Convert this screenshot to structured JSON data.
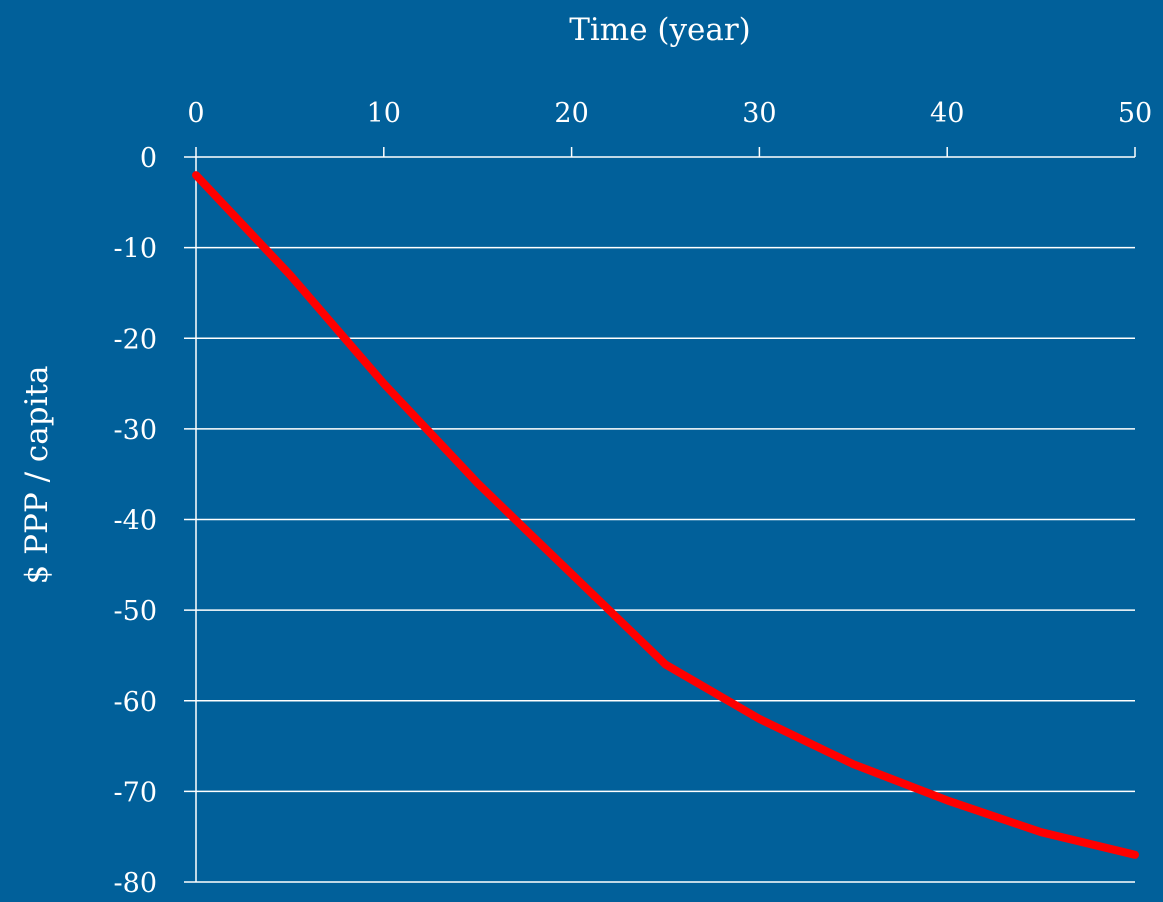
{
  "chart_data": {
    "type": "line",
    "title": "",
    "xlabel": "Time (year)",
    "ylabel": "$ PPP / capita",
    "xlim": [
      0,
      50
    ],
    "ylim": [
      -80,
      0
    ],
    "x_ticks": [
      0,
      10,
      20,
      30,
      40,
      50
    ],
    "y_ticks": [
      0,
      -10,
      -20,
      -30,
      -40,
      -50,
      -60,
      -70,
      -80
    ],
    "x_axis_position": "top",
    "grid": "horizontal",
    "legend": "none",
    "series": [
      {
        "name": "",
        "color": "#ff0000",
        "x": [
          0,
          5,
          10,
          15,
          17.5,
          20,
          25,
          30,
          35,
          40,
          45,
          50
        ],
        "y": [
          -2,
          -13,
          -25,
          -36,
          -41,
          -46,
          -56,
          -62,
          -67,
          -71,
          -74.5,
          -77
        ]
      }
    ]
  }
}
